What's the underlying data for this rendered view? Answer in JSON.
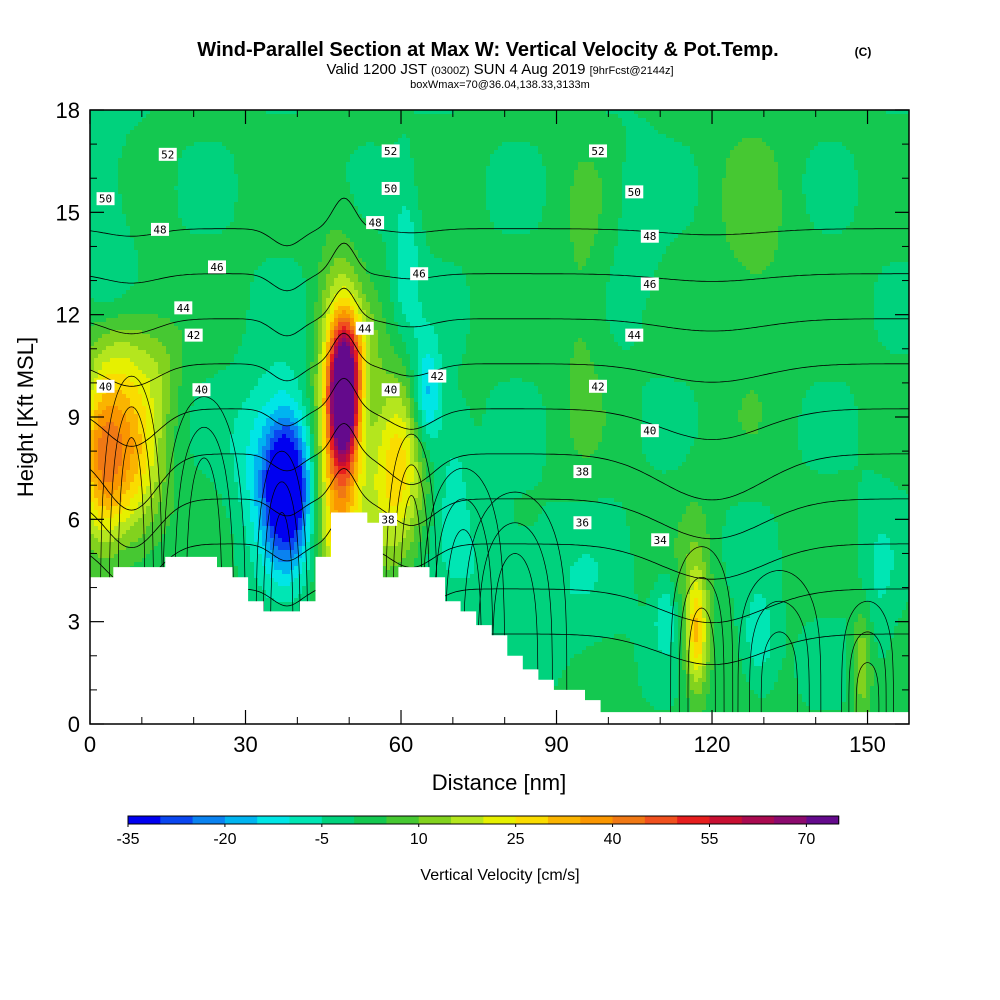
{
  "header": {
    "title": "Wind-Parallel Section at Max W: Vertical Velocity & Pot.Temp.",
    "title_c": "(C)",
    "sub_a": "Valid 1200 JST",
    "sub_b": "(0300Z)",
    "sub_c": "SUN 4 Aug 2019",
    "sub_d": "[9hrFcst@2144z]",
    "sub3": "boxWmax=70@36.04,138.33,3133m"
  },
  "chart_data": {
    "type": "heatmap",
    "xlabel": "Distance [nm]",
    "ylabel": "Height [Kft MSL]",
    "xlim": [
      0,
      158
    ],
    "ylim": [
      0,
      18
    ],
    "xticks": [
      0,
      30,
      60,
      90,
      120,
      150
    ],
    "yticks": [
      0,
      3,
      6,
      9,
      12,
      15,
      18
    ],
    "colorbar": {
      "label": "Vertical Velocity [cm/s]",
      "tick_labels": [
        "-35",
        "-20",
        "-5",
        "10",
        "25",
        "40",
        "55",
        "70"
      ],
      "tick_values": [
        -35,
        -20,
        -5,
        10,
        25,
        40,
        55,
        70
      ],
      "min": -35,
      "max": 80,
      "step": 5,
      "colors": [
        "#0000f0",
        "#0a46f0",
        "#0a82f0",
        "#00b4f0",
        "#00e6e6",
        "#00e6b4",
        "#00d27d",
        "#14c850",
        "#46c832",
        "#82d21e",
        "#b4e61e",
        "#e6f000",
        "#fadc00",
        "#fab400",
        "#fa9600",
        "#f07814",
        "#f0501e",
        "#e61e1e",
        "#c80f32",
        "#aa0a50",
        "#8c0a6e",
        "#640a8c"
      ]
    },
    "terrain_kft": [
      [
        0,
        4.3
      ],
      [
        4.5,
        4.3
      ],
      [
        4.5,
        4.6
      ],
      [
        14.5,
        4.6
      ],
      [
        14.5,
        4.9
      ],
      [
        24.5,
        4.9
      ],
      [
        24.5,
        4.6
      ],
      [
        27.5,
        4.6
      ],
      [
        27.5,
        4.3
      ],
      [
        30.5,
        4.3
      ],
      [
        30.5,
        3.6
      ],
      [
        33.5,
        3.6
      ],
      [
        33.5,
        3.3
      ],
      [
        40.5,
        3.3
      ],
      [
        40.5,
        3.6
      ],
      [
        43.5,
        3.6
      ],
      [
        43.5,
        4.9
      ],
      [
        46.5,
        4.9
      ],
      [
        46.5,
        6.2
      ],
      [
        53.5,
        6.2
      ],
      [
        53.5,
        5.9
      ],
      [
        56.5,
        5.9
      ],
      [
        56.5,
        4.3
      ],
      [
        59.5,
        4.3
      ],
      [
        59.5,
        4.6
      ],
      [
        65.5,
        4.6
      ],
      [
        65.5,
        4.3
      ],
      [
        68.5,
        4.3
      ],
      [
        68.5,
        3.6
      ],
      [
        71.5,
        3.6
      ],
      [
        71.5,
        3.3
      ],
      [
        74.5,
        3.3
      ],
      [
        74.5,
        2.9
      ],
      [
        77.5,
        2.9
      ],
      [
        77.5,
        2.6
      ],
      [
        80.5,
        2.6
      ],
      [
        80.5,
        2.0
      ],
      [
        83.5,
        2.0
      ],
      [
        83.5,
        1.6
      ],
      [
        86.5,
        1.6
      ],
      [
        86.5,
        1.3
      ],
      [
        89.5,
        1.3
      ],
      [
        89.5,
        1.0
      ],
      [
        95.5,
        1.0
      ],
      [
        95.5,
        0.7
      ],
      [
        98.5,
        0.7
      ],
      [
        98.5,
        0.35
      ],
      [
        158,
        0.35
      ]
    ],
    "w_cells": [
      {
        "x": 2,
        "z": 8.0,
        "sx": 3.0,
        "sz": 1.8,
        "w": 26
      },
      {
        "x": 8,
        "z": 8.5,
        "sx": 4.5,
        "sz": 2.0,
        "w": 22
      },
      {
        "x": 6,
        "z": 7.0,
        "sx": 5.0,
        "sz": 1.5,
        "w": 10
      },
      {
        "x": 14,
        "z": 10.5,
        "sx": 3.0,
        "sz": 1.0,
        "w": 6
      },
      {
        "x": 38,
        "z": 7.0,
        "sx": 3.0,
        "sz": 1.4,
        "w": -38
      },
      {
        "x": 37,
        "z": 7.0,
        "sx": 5.0,
        "sz": 2.4,
        "w": -12
      },
      {
        "x": 32,
        "z": 8.0,
        "sx": 4.0,
        "sz": 1.5,
        "w": -6
      },
      {
        "x": 49,
        "z": 9.7,
        "sx": 1.9,
        "sz": 1.3,
        "w": 78
      },
      {
        "x": 48,
        "z": 8.0,
        "sx": 3.0,
        "sz": 3.2,
        "w": 38
      },
      {
        "x": 59,
        "z": 7.5,
        "sx": 4.0,
        "sz": 1.9,
        "w": 28
      },
      {
        "x": 52,
        "z": 11.0,
        "sx": 2.5,
        "sz": 0.9,
        "w": 10
      },
      {
        "x": 65,
        "z": 9.5,
        "sx": 2.0,
        "sz": 1.2,
        "w": -22
      },
      {
        "x": 70,
        "z": 7.5,
        "sx": 2.5,
        "sz": 1.5,
        "w": -8
      },
      {
        "x": 61,
        "z": 13.5,
        "sx": 2.0,
        "sz": 1.8,
        "w": -10
      },
      {
        "x": 3,
        "z": 14.0,
        "sx": 3.5,
        "sz": 3.0,
        "w": -6
      },
      {
        "x": 5,
        "z": 11.0,
        "sx": 4.0,
        "sz": 1.0,
        "w": 8
      },
      {
        "x": 78,
        "z": 4.5,
        "sx": 8.0,
        "sz": 1.5,
        "w": -6
      },
      {
        "x": 95,
        "z": 3.5,
        "sx": 6.0,
        "sz": 1.5,
        "w": -5
      },
      {
        "x": 117,
        "z": 2.6,
        "sx": 1.4,
        "sz": 1.1,
        "w": 22
      },
      {
        "x": 117,
        "z": 3.5,
        "sx": 2.2,
        "sz": 2.0,
        "w": 10
      },
      {
        "x": 129,
        "z": 2.5,
        "sx": 2.5,
        "sz": 1.0,
        "w": -12
      },
      {
        "x": 111,
        "z": 3.2,
        "sx": 1.5,
        "sz": 0.8,
        "w": -10
      },
      {
        "x": 149,
        "z": 1.8,
        "sx": 1.4,
        "sz": 1.2,
        "w": 15
      },
      {
        "x": 152,
        "z": 4.0,
        "sx": 3.0,
        "sz": 2.0,
        "w": -6
      },
      {
        "x": 95,
        "z": 12.0,
        "sx": 3.0,
        "sz": 3.0,
        "w": 6
      },
      {
        "x": 128,
        "z": 14.0,
        "sx": 5.0,
        "sz": 3.0,
        "w": 6
      },
      {
        "x": 106,
        "z": 14.5,
        "sx": 3.0,
        "sz": 2.0,
        "w": -5
      }
    ],
    "theta_contours": [
      {
        "base": 34,
        "cool": 1.0,
        "label": "34"
      },
      {
        "base": 36,
        "cool": 1.1,
        "label": "36"
      },
      {
        "base": 38,
        "cool": 1.15,
        "label": "38"
      },
      {
        "base": 40,
        "cool": 1.3,
        "label": "40"
      },
      {
        "base": 42,
        "cool": 1.5,
        "label": "42"
      },
      {
        "base": 44,
        "cool": 1.0,
        "label": "44"
      },
      {
        "base": 46,
        "cool": 0.6,
        "label": "46"
      },
      {
        "base": 48,
        "cool": 0.4,
        "label": "48"
      },
      {
        "base": 50,
        "cool": 0.25,
        "label": "50"
      },
      {
        "base": 52,
        "cool": 0.2,
        "label": "52"
      }
    ],
    "contour_labels": [
      {
        "text": "52",
        "x": 15,
        "y": 16.7
      },
      {
        "text": "52",
        "x": 58,
        "y": 16.8
      },
      {
        "text": "52",
        "x": 98,
        "y": 16.8
      },
      {
        "text": "50",
        "x": 3,
        "y": 15.4
      },
      {
        "text": "50",
        "x": 58,
        "y": 15.7
      },
      {
        "text": "50",
        "x": 105,
        "y": 15.6
      },
      {
        "text": "48",
        "x": 13.5,
        "y": 14.5
      },
      {
        "text": "48",
        "x": 55,
        "y": 14.7
      },
      {
        "text": "48",
        "x": 108,
        "y": 14.3
      },
      {
        "text": "46",
        "x": 24.5,
        "y": 13.4
      },
      {
        "text": "46",
        "x": 63.5,
        "y": 13.2
      },
      {
        "text": "46",
        "x": 108,
        "y": 12.9
      },
      {
        "text": "44",
        "x": 18,
        "y": 12.2
      },
      {
        "text": "44",
        "x": 53,
        "y": 11.6
      },
      {
        "text": "44",
        "x": 105,
        "y": 11.4
      },
      {
        "text": "42",
        "x": 20,
        "y": 11.4
      },
      {
        "text": "42",
        "x": 67,
        "y": 10.2
      },
      {
        "text": "42",
        "x": 98,
        "y": 9.9
      },
      {
        "text": "40",
        "x": 3,
        "y": 9.9
      },
      {
        "text": "40",
        "x": 21.5,
        "y": 9.8
      },
      {
        "text": "40",
        "x": 58,
        "y": 9.8
      },
      {
        "text": "40",
        "x": 108,
        "y": 8.6
      },
      {
        "text": "38",
        "x": 57.5,
        "y": 6.0
      },
      {
        "text": "38",
        "x": 95,
        "y": 7.4
      },
      {
        "text": "36",
        "x": 95,
        "y": 5.9
      },
      {
        "text": "34",
        "x": 110,
        "y": 5.4
      }
    ]
  }
}
